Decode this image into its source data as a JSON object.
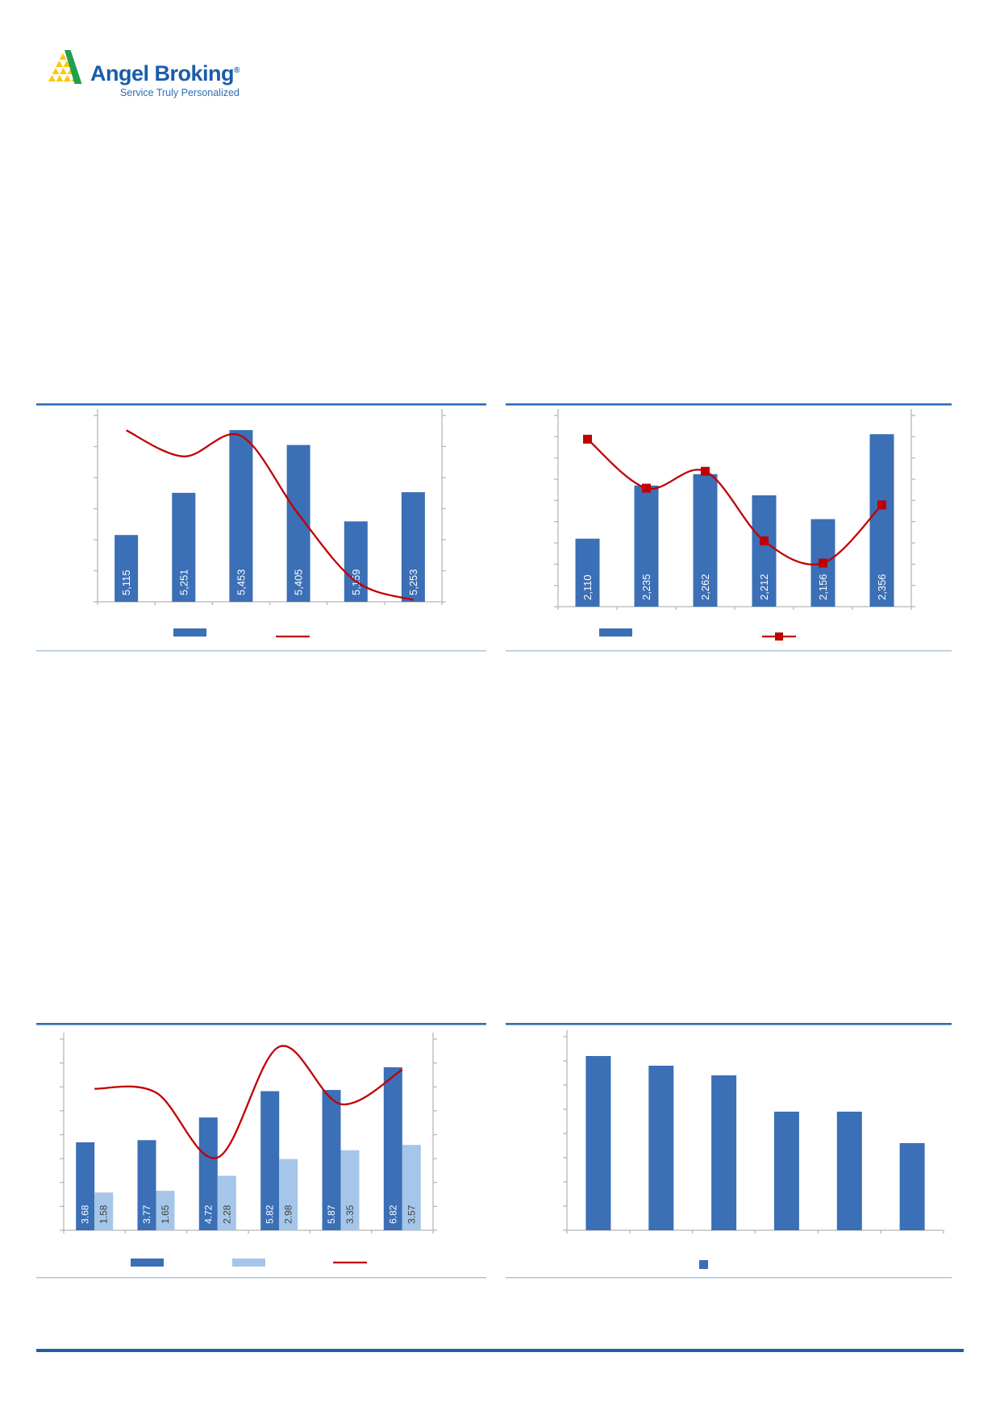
{
  "logo": {
    "brand": "Angel Broking",
    "registered": "®",
    "tagline": "Service Truly Personalized"
  },
  "colors": {
    "bar_primary": "#3B6FB6",
    "bar_secondary": "#A5C6E8",
    "line_red": "#C00000",
    "divider_strong": "#2E6DB5",
    "divider_light": "#A9C3DD",
    "axis": "#B7B7B7",
    "bar_label_light": "#FFFFFF",
    "bar_label_dark": "#3F3F3F",
    "page_rule": "#1F5CA8",
    "logo_yellow": "#FFC709",
    "logo_green": "#22A04C",
    "brand_blue": "#1A5CA8"
  },
  "chart_data": [
    {
      "id": "chart-top-left",
      "type": "bar",
      "title": "",
      "xlabel": "",
      "ylabel": "",
      "grid": false,
      "categories": [
        "",
        "",
        "",
        "",
        "",
        ""
      ],
      "series": [
        {
          "name": "primary-bars",
          "kind": "bar",
          "color": "#3B6FB6",
          "values": [
            5115,
            5251,
            5453,
            5405,
            5159,
            5253
          ],
          "data_labels": [
            "5,115",
            "5,251",
            "5,453",
            "5,405",
            "5,159",
            "5,253"
          ],
          "label_color": "#FFFFFF"
        },
        {
          "name": "trend-line",
          "kind": "line",
          "color": "#C00000",
          "axis": "secondary",
          "estimated": true,
          "values": [
            9.2,
            7.8,
            8.9,
            4.7,
            1.1,
            0.1
          ]
        }
      ],
      "ylim": [
        4900,
        5500
      ],
      "y2lim": [
        0,
        10
      ],
      "legend": {
        "position": "bottom",
        "entries": [
          {
            "swatch": "bar",
            "color": "#3B6FB6",
            "label": ""
          },
          {
            "swatch": "line",
            "color": "#C00000",
            "label": ""
          }
        ]
      }
    },
    {
      "id": "chart-top-right",
      "type": "bar",
      "title": "",
      "xlabel": "",
      "ylabel": "",
      "grid": false,
      "categories": [
        "",
        "",
        "",
        "",
        "",
        ""
      ],
      "series": [
        {
          "name": "primary-bars",
          "kind": "bar",
          "color": "#3B6FB6",
          "values": [
            2110,
            2235,
            2262,
            2212,
            2156,
            2356
          ],
          "data_labels": [
            "2,110",
            "2,235",
            "2,262",
            "2,212",
            "2,156",
            "2,356"
          ],
          "label_color": "#FFFFFF"
        },
        {
          "name": "trend-line-markers",
          "kind": "line",
          "color": "#C00000",
          "marker": "square",
          "axis": "secondary",
          "estimated": true,
          "values": [
            21.9,
            15.5,
            17.7,
            8.6,
            5.7,
            13.3
          ]
        }
      ],
      "ylim": [
        1950,
        2400
      ],
      "y2lim": [
        0,
        25
      ],
      "legend": {
        "position": "bottom",
        "entries": [
          {
            "swatch": "bar",
            "color": "#3B6FB6",
            "label": ""
          },
          {
            "swatch": "line-marker",
            "color": "#C00000",
            "label": ""
          }
        ]
      }
    },
    {
      "id": "chart-bottom-left",
      "type": "bar",
      "title": "",
      "xlabel": "",
      "ylabel": "",
      "grid": false,
      "categories": [
        "",
        "",
        "",
        "",
        "",
        ""
      ],
      "series": [
        {
          "name": "dark-blue-bars",
          "kind": "bar",
          "color": "#3B6FB6",
          "values": [
            3.68,
            3.77,
            4.72,
            5.82,
            5.87,
            6.82
          ],
          "data_labels": [
            "3.68",
            "3.77",
            "4.72",
            "5.82",
            "5.87",
            "6.82"
          ],
          "label_color": "#FFFFFF"
        },
        {
          "name": "light-blue-bars",
          "kind": "bar",
          "color": "#A5C6E8",
          "values": [
            1.58,
            1.65,
            2.28,
            2.98,
            3.35,
            3.57
          ],
          "data_labels": [
            "1.58",
            "1.65",
            "2.28",
            "2.98",
            "3.35",
            "3.57"
          ],
          "label_color": "#3F3F3F"
        },
        {
          "name": "trend-line",
          "kind": "line",
          "color": "#C00000",
          "axis": "secondary",
          "estimated": true,
          "values": [
            37,
            36,
            19,
            48,
            33,
            42
          ]
        }
      ],
      "ylim": [
        0,
        8
      ],
      "y2lim": [
        0,
        50
      ],
      "legend": {
        "position": "bottom",
        "entries": [
          {
            "swatch": "bar",
            "color": "#3B6FB6",
            "label": ""
          },
          {
            "swatch": "bar",
            "color": "#A5C6E8",
            "label": ""
          },
          {
            "swatch": "line",
            "color": "#C00000",
            "label": ""
          }
        ]
      }
    },
    {
      "id": "chart-bottom-right",
      "type": "bar",
      "title": "",
      "xlabel": "",
      "ylabel": "",
      "grid": false,
      "categories": [
        "",
        "",
        "",
        "",
        "",
        ""
      ],
      "series": [
        {
          "name": "primary-bars",
          "kind": "bar",
          "color": "#3B6FB6",
          "estimated": true,
          "values": [
            7.2,
            6.8,
            6.4,
            4.9,
            4.9,
            3.6
          ]
        }
      ],
      "ylim": [
        0,
        8
      ],
      "legend": {
        "position": "bottom",
        "entries": [
          {
            "swatch": "bar-small",
            "color": "#3B6FB6",
            "label": ""
          }
        ]
      }
    }
  ]
}
